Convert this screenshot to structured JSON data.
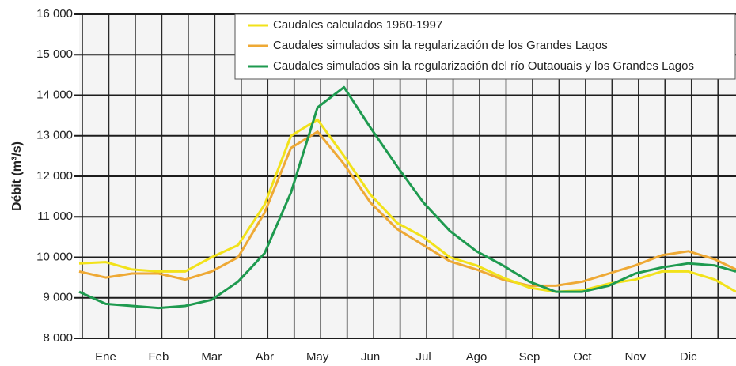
{
  "chart_data": {
    "type": "line",
    "y_label": "Débit (m³/s)",
    "x": [
      0,
      0.5,
      1,
      1.5,
      2,
      2.5,
      3,
      3.5,
      4,
      4.5,
      5,
      5.5,
      6,
      6.5,
      7,
      7.5,
      8,
      8.5,
      9,
      9.5,
      10,
      10.5,
      11,
      11.5,
      12,
      12.4
    ],
    "series": [
      {
        "name": "Caudales calculados 1960-1997",
        "color": "#f2e21a",
        "values": [
          9850,
          9880,
          9700,
          9650,
          9650,
          10000,
          10300,
          11300,
          13000,
          13400,
          12500,
          11550,
          10850,
          10500,
          10000,
          9800,
          9500,
          9250,
          9150,
          9180,
          9350,
          9450,
          9650,
          9650,
          9450,
          9150
        ]
      },
      {
        "name": "Caudales simulados sin la regularización de los Grandes Lagos",
        "color": "#eea935",
        "values": [
          9650,
          9500,
          9600,
          9600,
          9450,
          9650,
          10000,
          11100,
          12700,
          13100,
          12300,
          11350,
          10700,
          10300,
          9900,
          9700,
          9450,
          9300,
          9300,
          9400,
          9600,
          9800,
          10050,
          10150,
          9950,
          9700
        ]
      },
      {
        "name": "Caudales simulados sin la regularización del río Outaouais y los Grandes Lagos",
        "color": "#1e9a4f",
        "values": [
          9150,
          8850,
          8800,
          8750,
          8800,
          8950,
          9400,
          10100,
          11600,
          13700,
          14200,
          13200,
          12250,
          11350,
          10650,
          10150,
          9800,
          9400,
          9150,
          9150,
          9300,
          9600,
          9750,
          9850,
          9800,
          9650
        ]
      }
    ],
    "xlim": [
      0,
      12.4
    ],
    "xticks": [
      {
        "value": 0.5,
        "label": "Ene"
      },
      {
        "value": 1.5,
        "label": "Feb"
      },
      {
        "value": 2.5,
        "label": "Mar"
      },
      {
        "value": 3.5,
        "label": "Abr"
      },
      {
        "value": 4.5,
        "label": "May"
      },
      {
        "value": 5.5,
        "label": "Jun"
      },
      {
        "value": 6.5,
        "label": "Jul"
      },
      {
        "value": 7.5,
        "label": "Ago"
      },
      {
        "value": 8.5,
        "label": "Sep"
      },
      {
        "value": 9.5,
        "label": "Oct"
      },
      {
        "value": 10.5,
        "label": "Nov"
      },
      {
        "value": 11.5,
        "label": "Dic"
      }
    ],
    "ylim": [
      8000,
      16000
    ],
    "yticks": [
      {
        "value": 8000,
        "label": "8 000"
      },
      {
        "value": 9000,
        "label": "9 000"
      },
      {
        "value": 10000,
        "label": "10 000"
      },
      {
        "value": 11000,
        "label": "11 000"
      },
      {
        "value": 12000,
        "label": "12 000"
      },
      {
        "value": 13000,
        "label": "13 000"
      },
      {
        "value": 14000,
        "label": "14 000"
      },
      {
        "value": 15000,
        "label": "15 000"
      },
      {
        "value": 16000,
        "label": "16 000"
      }
    ],
    "grid": true,
    "legend": "top-right"
  }
}
